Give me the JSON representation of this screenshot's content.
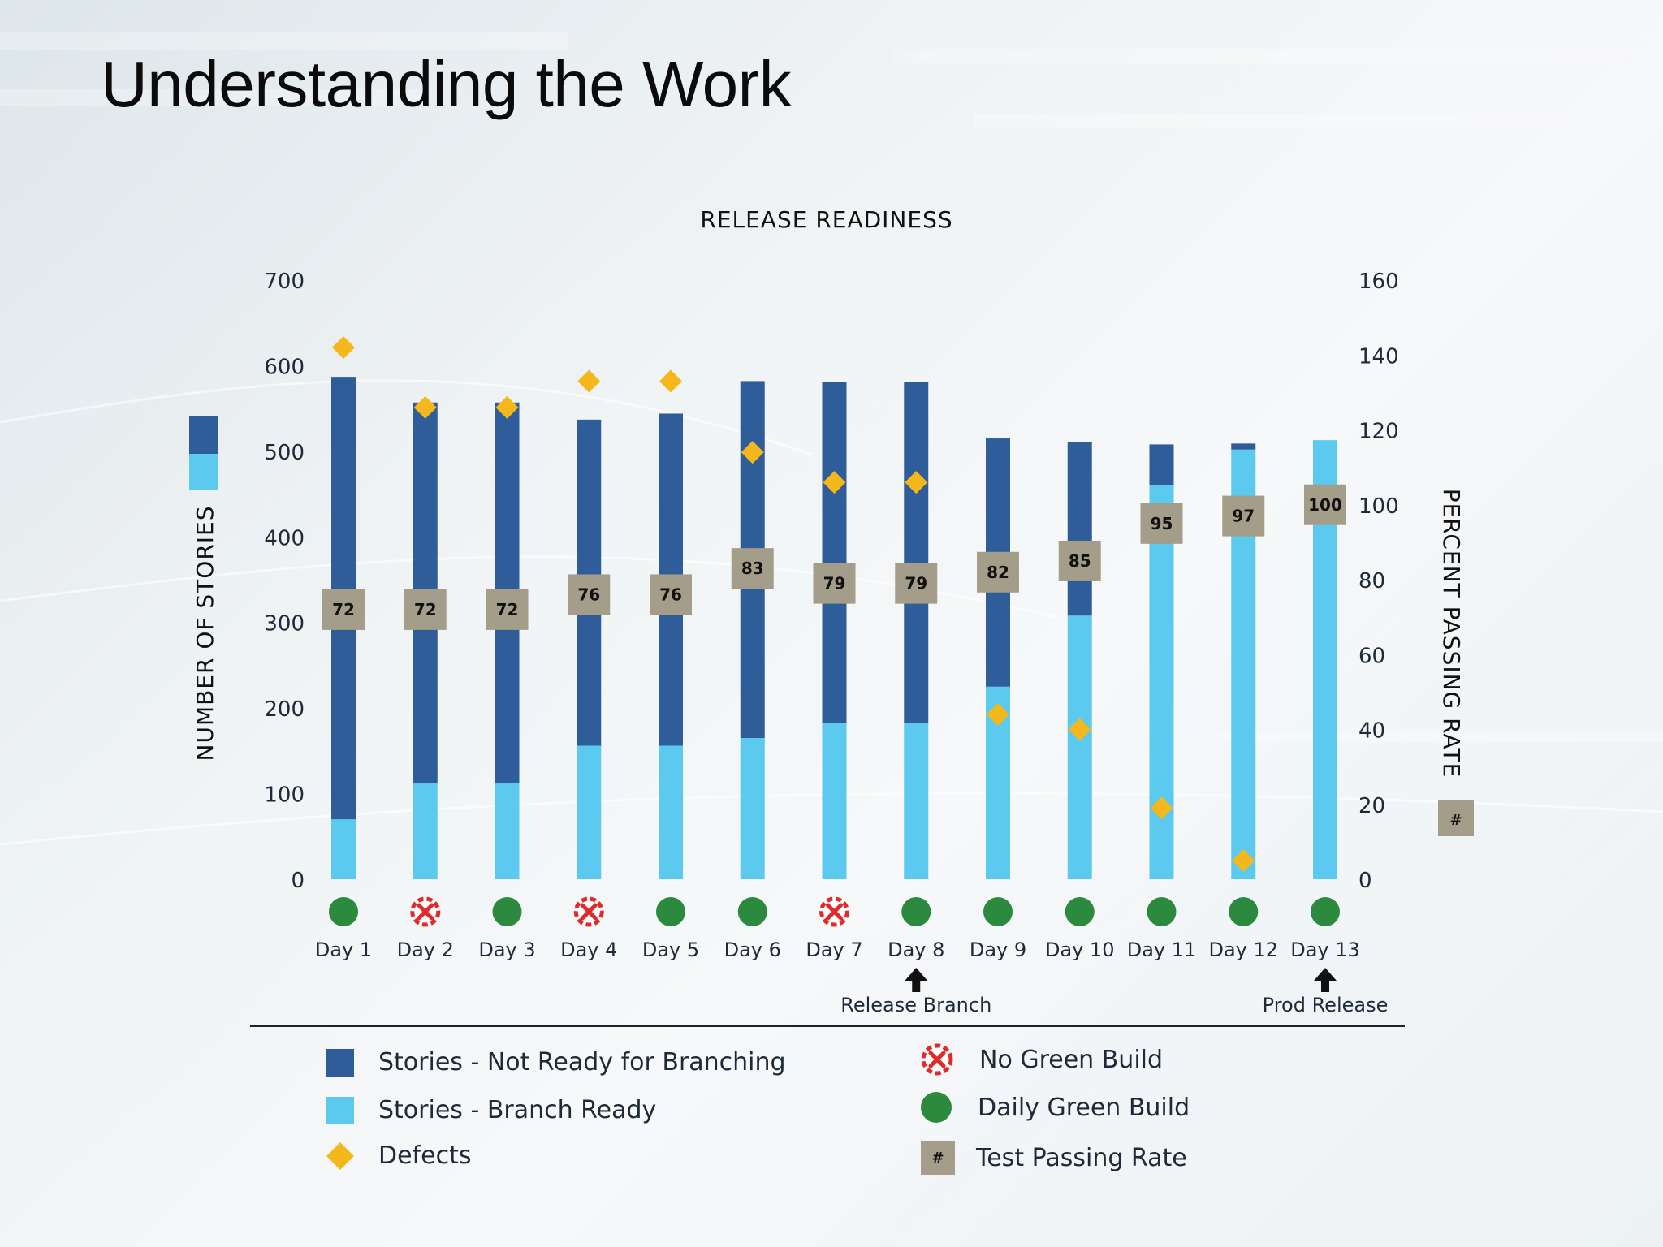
{
  "slide": {
    "title": "Understanding the Work"
  },
  "colors": {
    "not_ready": "#2f5d99",
    "branch_ready": "#5ccaee",
    "defect": "#f5b81c",
    "green_build": "#2b8a3e",
    "no_green_build": "#e02b2b",
    "pass_badge": "#a39d89"
  },
  "legend": {
    "not_ready_label": "Stories - Not Ready for Branching",
    "branch_ready_label": "Stories - Branch Ready",
    "defects_label": "Defects",
    "no_green_label": "No Green Build",
    "daily_green_label": "Daily Green Build",
    "test_pass_label": "Test Passing Rate",
    "hash_symbol": "#"
  },
  "chart_data": {
    "type": "bar",
    "title": "RELEASE READINESS",
    "ylabel": "NUMBER OF STORIES",
    "y2label": "PERCENT PASSING RATE",
    "ylim": [
      0,
      700
    ],
    "y_ticks": [
      0,
      100,
      200,
      300,
      400,
      500,
      600,
      700
    ],
    "y2lim": [
      0,
      160
    ],
    "y2_ticks": [
      0,
      20,
      40,
      60,
      80,
      100,
      120,
      140,
      160
    ],
    "categories": [
      "Day 1",
      "Day 2",
      "Day 3",
      "Day 4",
      "Day 5",
      "Day 6",
      "Day 7",
      "Day 8",
      "Day 9",
      "Day 10",
      "Day 11",
      "Day 12",
      "Day 13"
    ],
    "series": [
      {
        "name": "Stories - Branch Ready",
        "stack": true,
        "values": [
          70,
          112,
          112,
          156,
          156,
          165,
          183,
          183,
          225,
          308,
          460,
          502,
          513
        ]
      },
      {
        "name": "Stories - Not Ready for Branching",
        "stack": true,
        "values": [
          517,
          445,
          445,
          381,
          388,
          417,
          398,
          398,
          290,
          203,
          48,
          7,
          0
        ]
      },
      {
        "name": "Defects",
        "axis": "secondary",
        "values": [
          142,
          126,
          126,
          133,
          133,
          114,
          106,
          106,
          44,
          40,
          19,
          5,
          null
        ]
      },
      {
        "name": "Test Passing Rate",
        "axis": "secondary",
        "values": [
          72,
          72,
          72,
          76,
          76,
          83,
          79,
          79,
          82,
          85,
          95,
          97,
          100
        ]
      }
    ],
    "build_status": [
      "green",
      "fail",
      "green",
      "fail",
      "green",
      "green",
      "fail",
      "green",
      "green",
      "green",
      "green",
      "green",
      "green"
    ],
    "annotations": [
      {
        "category": "Day 8",
        "text": "Release Branch"
      },
      {
        "category": "Day 13",
        "text": "Prod Release"
      }
    ],
    "grid": false,
    "legend_position": "bottom"
  }
}
